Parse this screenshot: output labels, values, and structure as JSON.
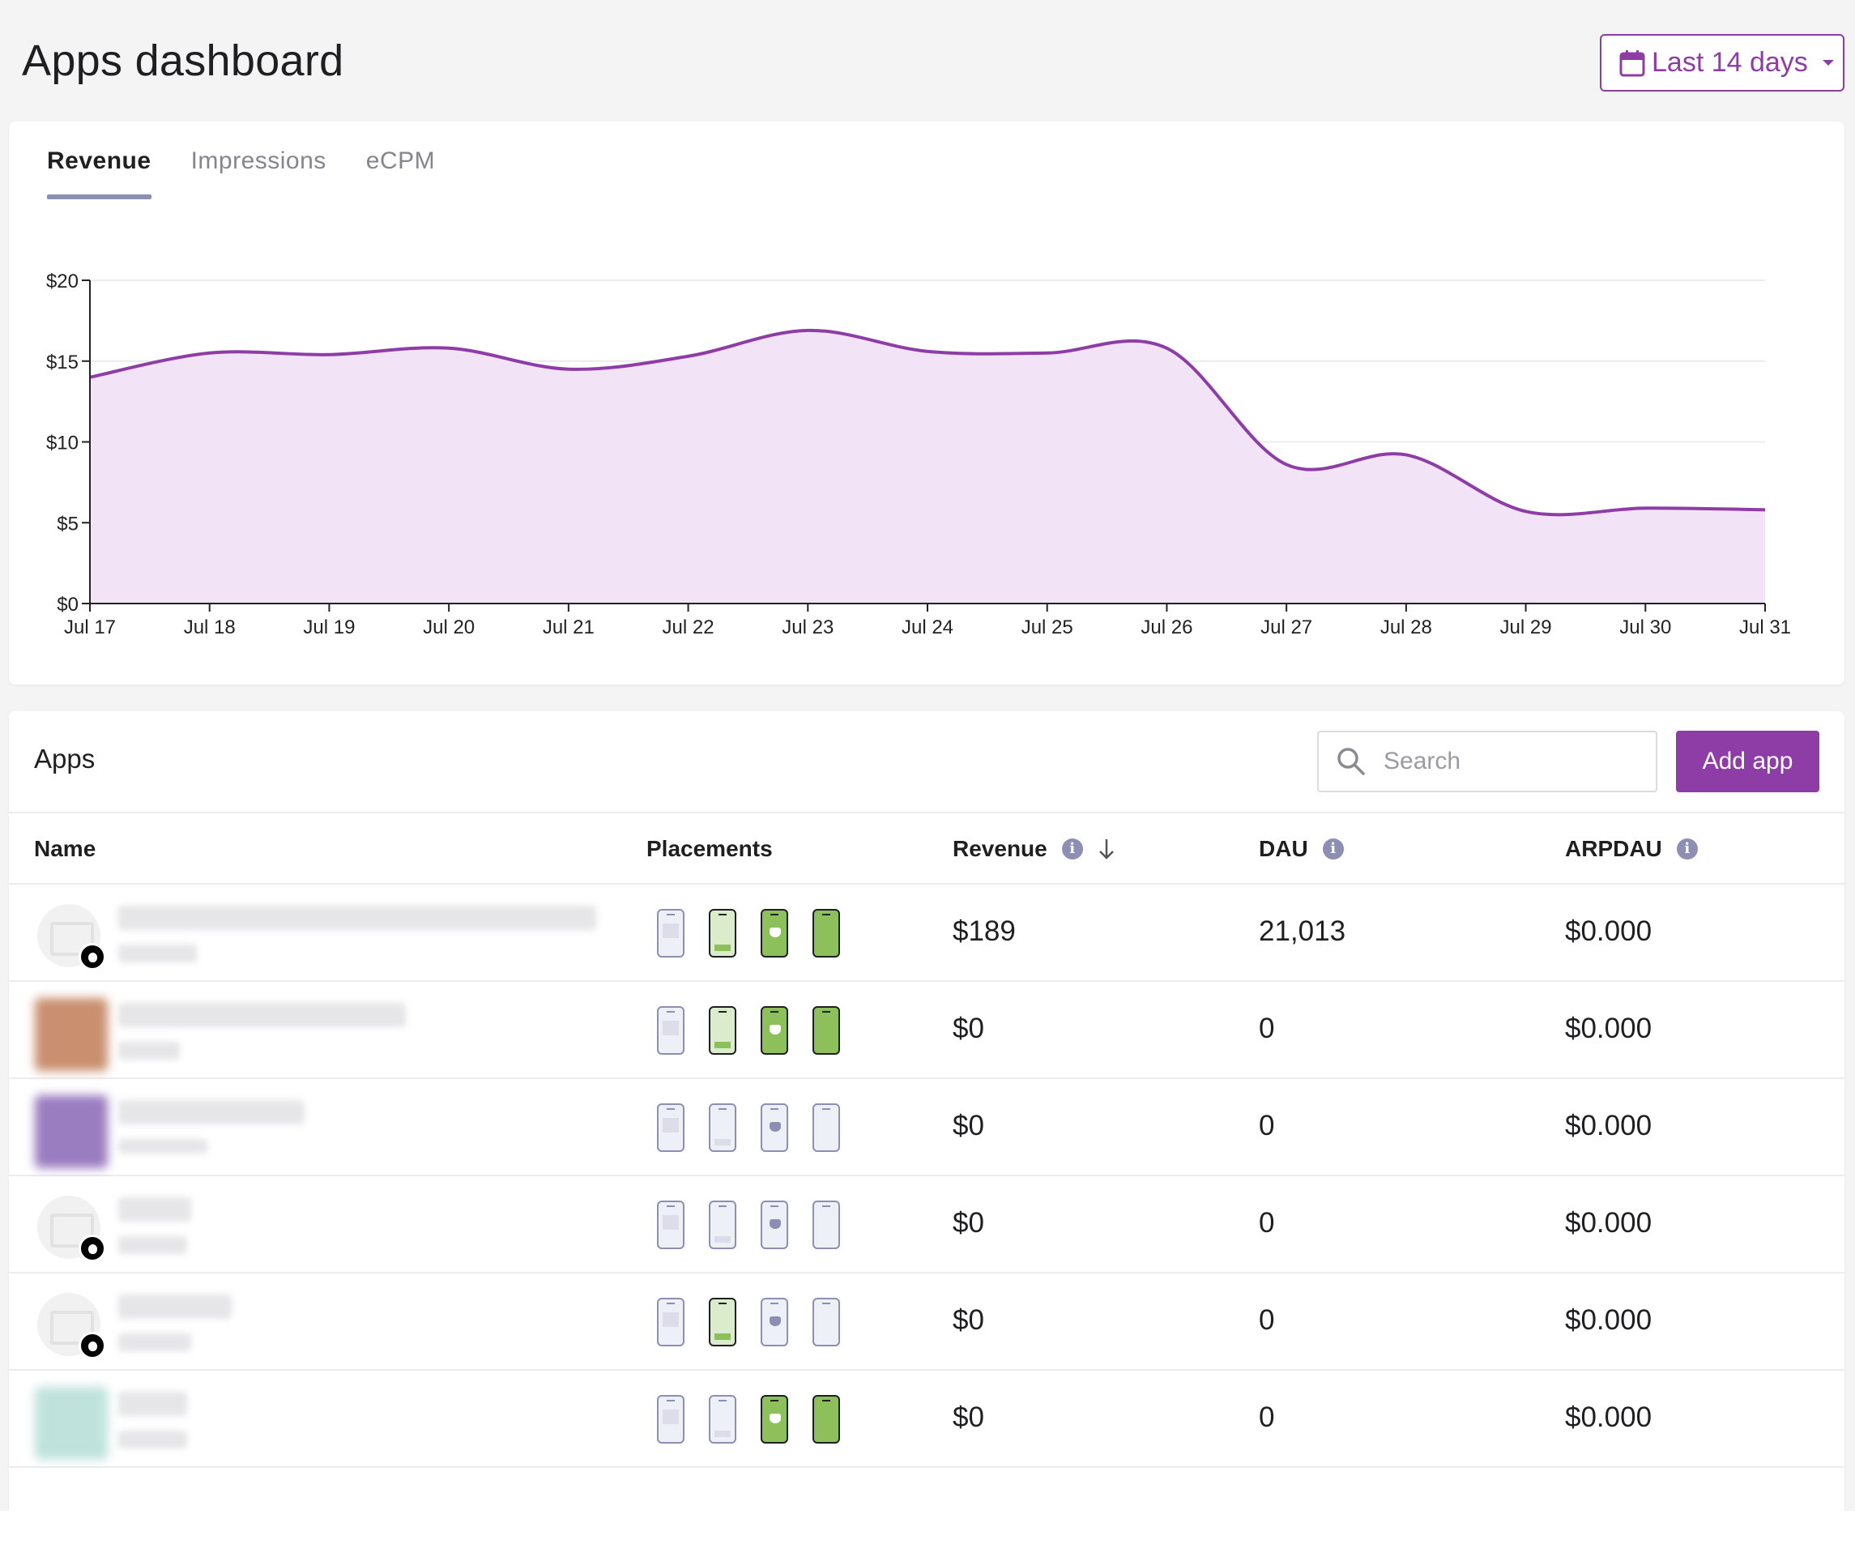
{
  "page": {
    "title": "Apps dashboard",
    "date_range": "Last 14 days"
  },
  "tabs": [
    {
      "label": "Revenue",
      "active": true
    },
    {
      "label": "Impressions",
      "active": false
    },
    {
      "label": "eCPM",
      "active": false
    }
  ],
  "chart_data": {
    "type": "area",
    "title": "Revenue",
    "xlabel": "",
    "ylabel": "",
    "x": [
      "Jul 17",
      "Jul 18",
      "Jul 19",
      "Jul 20",
      "Jul 21",
      "Jul 22",
      "Jul 23",
      "Jul 24",
      "Jul 25",
      "Jul 26",
      "Jul 27",
      "Jul 28",
      "Jul 29",
      "Jul 30",
      "Jul 31"
    ],
    "y": [
      14.0,
      15.5,
      15.4,
      15.8,
      14.5,
      15.3,
      16.9,
      15.6,
      15.5,
      15.8,
      8.6,
      9.2,
      5.7,
      5.9,
      5.8
    ],
    "ylim": [
      0,
      20
    ],
    "y_ticks": [
      "$0",
      "$5",
      "$10",
      "$15",
      "$20"
    ],
    "y_tick_values": [
      0,
      5,
      10,
      15,
      20
    ],
    "grid": true,
    "line_color": "#8e3da6",
    "fill_color": "#f2e4f6"
  },
  "apps": {
    "title": "Apps",
    "search_placeholder": "Search",
    "add_label": "Add app",
    "columns": {
      "name": "Name",
      "placements": "Placements",
      "revenue": "Revenue",
      "dau": "DAU",
      "arpdau": "ARPDAU"
    },
    "rows": [
      {
        "thumb": "placeholder",
        "ios": true,
        "placements": [
          false,
          true,
          true,
          true
        ],
        "revenue": "$189",
        "dau": "21,013",
        "arpdau": "$0.000"
      },
      {
        "thumb": "#c98f6f",
        "ios": false,
        "placements": [
          false,
          true,
          true,
          true
        ],
        "revenue": "$0",
        "dau": "0",
        "arpdau": "$0.000"
      },
      {
        "thumb": "#9a7cc0",
        "ios": false,
        "placements": [
          false,
          false,
          false,
          false
        ],
        "revenue": "$0",
        "dau": "0",
        "arpdau": "$0.000"
      },
      {
        "thumb": "placeholder",
        "ios": true,
        "placements": [
          false,
          false,
          false,
          false
        ],
        "revenue": "$0",
        "dau": "0",
        "arpdau": "$0.000"
      },
      {
        "thumb": "placeholder",
        "ios": true,
        "placements": [
          false,
          true,
          false,
          false
        ],
        "revenue": "$0",
        "dau": "0",
        "arpdau": "$0.000"
      },
      {
        "thumb": "#bfe3dc",
        "ios": false,
        "placements": [
          false,
          false,
          true,
          true
        ],
        "revenue": "$0",
        "dau": "0",
        "arpdau": "$0.000"
      }
    ]
  },
  "colors": {
    "accent": "#8e3da6",
    "muted_icon": "#8c8fb3",
    "active_green": "#8dbf5b"
  }
}
